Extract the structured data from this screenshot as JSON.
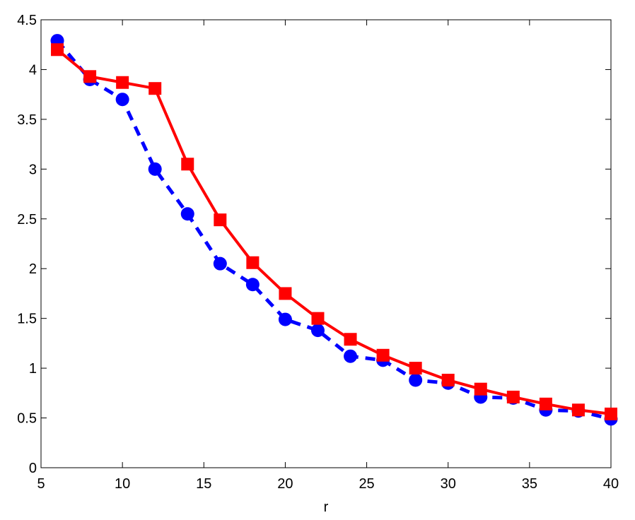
{
  "chart_data": {
    "type": "line",
    "title": "",
    "xlabel": "r",
    "ylabel": "",
    "xlim": [
      5,
      40
    ],
    "ylim": [
      0,
      4.5
    ],
    "xticks": [
      5,
      10,
      15,
      20,
      25,
      30,
      35,
      40
    ],
    "xtick_labels": [
      "5",
      "10",
      "15",
      "20",
      "25",
      "30",
      "35",
      "40"
    ],
    "yticks": [
      0,
      0.5,
      1,
      1.5,
      2,
      2.5,
      3,
      3.5,
      4,
      4.5
    ],
    "ytick_labels": [
      "0",
      "0.5",
      "1",
      "1.5",
      "2",
      "2.5",
      "3",
      "3.5",
      "4",
      "4.5"
    ],
    "grid": false,
    "legend": "none",
    "x": [
      6,
      8,
      10,
      12,
      14,
      16,
      18,
      20,
      22,
      24,
      26,
      28,
      30,
      32,
      34,
      36,
      38,
      40
    ],
    "series": [
      {
        "color": "#0000ff",
        "line_style": "dashed",
        "marker": "circle",
        "values": [
          4.29,
          3.9,
          3.7,
          3.0,
          2.55,
          2.05,
          1.84,
          1.49,
          1.38,
          1.12,
          1.08,
          0.88,
          0.85,
          0.71,
          0.7,
          0.58,
          0.57,
          0.49
        ]
      },
      {
        "color": "#ff0000",
        "line_style": "solid",
        "marker": "square",
        "values": [
          4.2,
          3.93,
          3.87,
          3.81,
          3.05,
          2.49,
          2.06,
          1.75,
          1.5,
          1.29,
          1.13,
          1.0,
          0.88,
          0.79,
          0.71,
          0.64,
          0.58,
          0.54
        ]
      }
    ]
  }
}
